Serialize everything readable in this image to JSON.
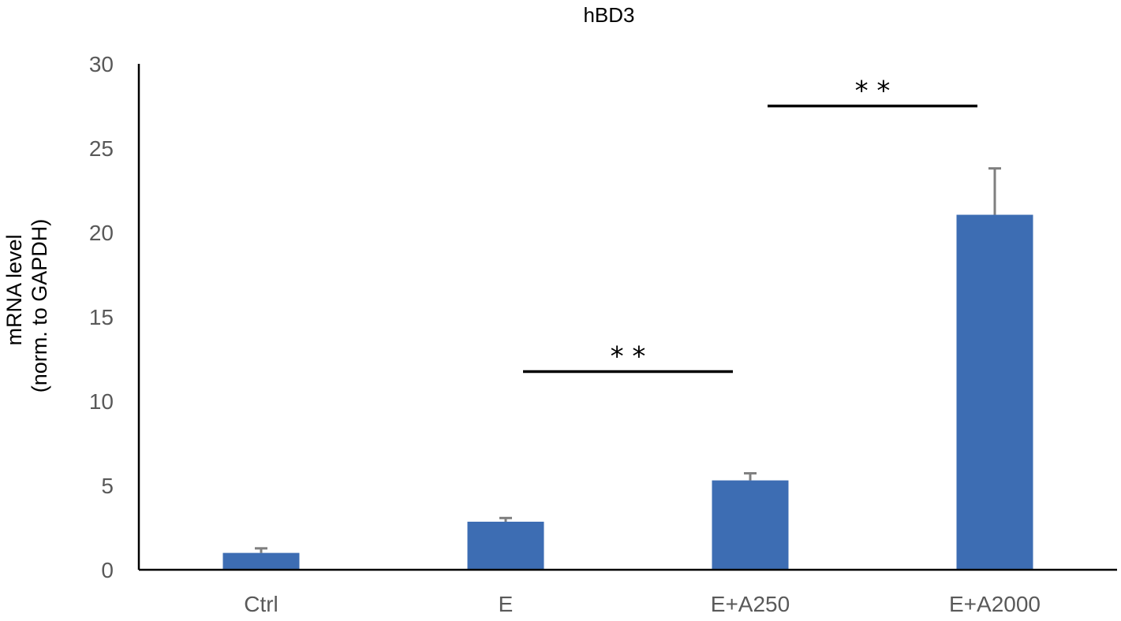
{
  "chart_data": {
    "type": "bar",
    "title": "hBD3",
    "ylabel_line1": "mRNA level",
    "ylabel_line2": "(norm. to GAPDH)",
    "xlabel": "",
    "categories": [
      "Ctrl",
      "E",
      "E+A250",
      "E+A2000"
    ],
    "values": [
      1.0,
      2.85,
      5.3,
      21.05
    ],
    "errors": [
      0.27,
      0.22,
      0.42,
      2.75
    ],
    "ylim": [
      0,
      30
    ],
    "yticks": [
      0,
      5,
      10,
      15,
      20,
      25,
      30
    ],
    "grid": false,
    "legend": "none",
    "bar_color": "#3D6DB3",
    "error_color": "#7F7F7F",
    "significance": [
      {
        "from": "E",
        "to": "E+A250",
        "y": 11.75,
        "label": "* *"
      },
      {
        "from": "E+A250",
        "to": "E+A2000",
        "y": 27.5,
        "label": "* *"
      }
    ]
  }
}
